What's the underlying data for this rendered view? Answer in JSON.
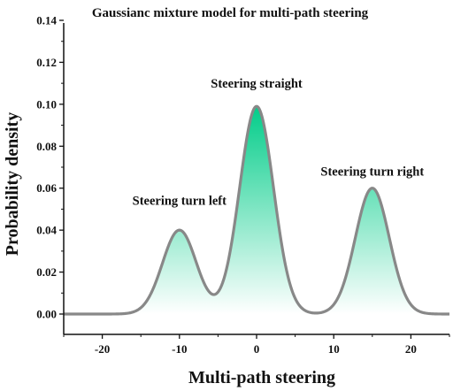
{
  "chart_data": {
    "type": "area",
    "title": "Gaussianc mixture model for multi-path steering",
    "xlabel": "Multi-path steering",
    "ylabel": "Probability density",
    "xlim": [
      -25,
      25
    ],
    "ylim": [
      0,
      0.14
    ],
    "xticks": [
      -20,
      -10,
      0,
      10,
      20
    ],
    "xtick_labels": [
      "-20",
      "-10",
      "0",
      "10",
      "20"
    ],
    "yticks": [
      0.0,
      0.02,
      0.04,
      0.06,
      0.08,
      0.1,
      0.12,
      0.14
    ],
    "ytick_labels": [
      "0.00",
      "0.02",
      "0.04",
      "0.06",
      "0.08",
      "0.10",
      "0.12",
      "0.14"
    ],
    "grid": false,
    "components": [
      {
        "mean": -10,
        "peak": 0.04,
        "sigma": 2.2
      },
      {
        "mean": 0,
        "peak": 0.099,
        "sigma": 2.2
      },
      {
        "mean": 15,
        "peak": 0.06,
        "sigma": 2.2
      }
    ],
    "annotations": [
      {
        "text": "Steering turn left",
        "x": -10,
        "y": 0.052
      },
      {
        "text": "Steering straight",
        "x": 0,
        "y": 0.108
      },
      {
        "text": "Steering turn right",
        "x": 15,
        "y": 0.066
      }
    ],
    "colors": {
      "curve": "#888888",
      "fill_peak": "#00cc88",
      "fill_base": "#ffffff",
      "axis": "#111111"
    }
  }
}
